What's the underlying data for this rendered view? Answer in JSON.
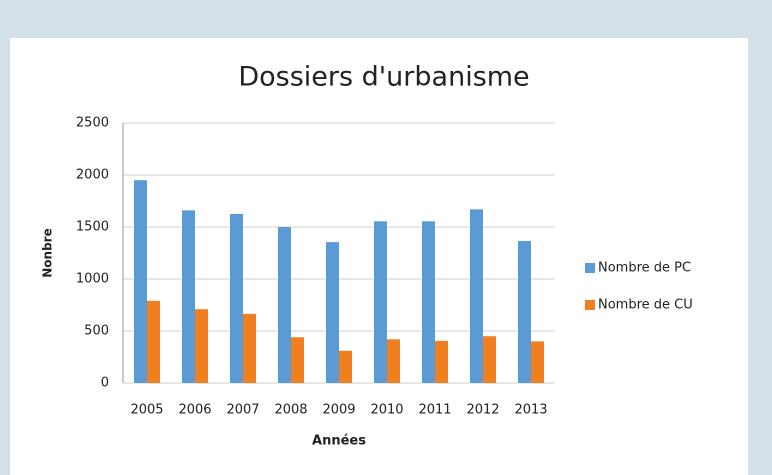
{
  "chart_data": {
    "type": "bar",
    "title": "Dossiers d'urbanisme",
    "x_label": "Années",
    "y_label": "Nonbre",
    "categories": [
      "2005",
      "2006",
      "2007",
      "2008",
      "2009",
      "2010",
      "2011",
      "2012",
      "2013"
    ],
    "series": [
      {
        "name": "Nombre de PC",
        "color": "#5b9bd5",
        "values": [
          1950,
          1660,
          1625,
          1500,
          1355,
          1555,
          1555,
          1670,
          1365
        ]
      },
      {
        "name": "Nombre de CU",
        "color": "#f07f22",
        "values": [
          790,
          710,
          665,
          440,
          310,
          420,
          405,
          450,
          400
        ]
      }
    ],
    "ylim": [
      0,
      2500
    ],
    "yticks": [
      0,
      500,
      1000,
      1500,
      2000,
      2500
    ],
    "grid": true,
    "legend": "right"
  }
}
